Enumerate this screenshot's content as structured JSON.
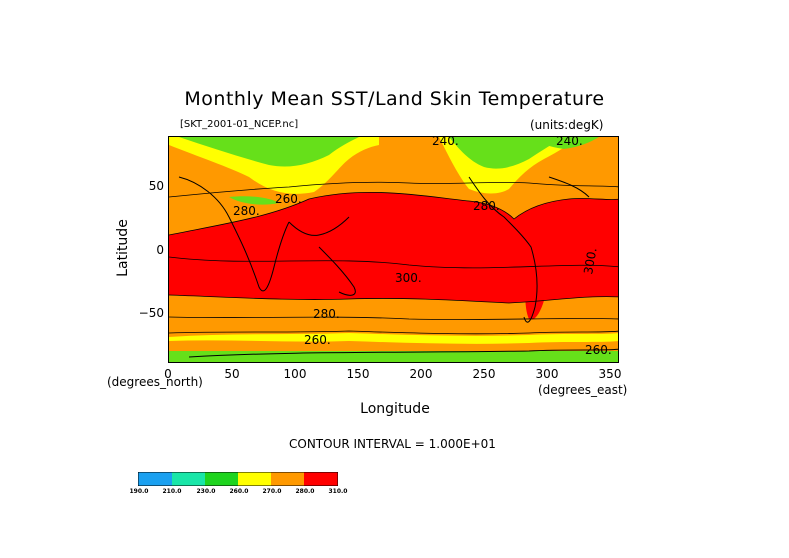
{
  "map": {
    "title": "Monthly Mean SST/Land Skin Temperature",
    "file_label": "[SKT_2001-01_NCEP.nc]",
    "units_label": "(units:degK)",
    "x_axis": {
      "label": "Longitude",
      "unit": "(degrees_east)",
      "ticks": [
        "0",
        "50",
        "100",
        "150",
        "200",
        "250",
        "300",
        "350"
      ],
      "range": [
        0,
        357.5
      ]
    },
    "y_axis": {
      "label": "Latitude",
      "unit": "(degrees_north)",
      "ticks": [
        "50",
        "0",
        "−50"
      ],
      "range": [
        -90,
        90
      ]
    },
    "contour_interval_text": "CONTOUR INTERVAL = 1.000E+01",
    "contour_labels": [
      "240.",
      "240.",
      "260.",
      "280.",
      "280.",
      "300.",
      "300.",
      "280.",
      "260.",
      "260."
    ],
    "colors": {
      "c190": "#1aa0f0",
      "c210": "#19e6a8",
      "c230": "#1ed41e",
      "c260": "#66e01a",
      "c270": "#ffff00",
      "c280": "#ff9900",
      "c300": "#ff0000"
    },
    "colorbar_labels": [
      "190.0",
      "210.0",
      "230.0",
      "260.0",
      "270.0",
      "280.0",
      "310.0"
    ]
  }
}
